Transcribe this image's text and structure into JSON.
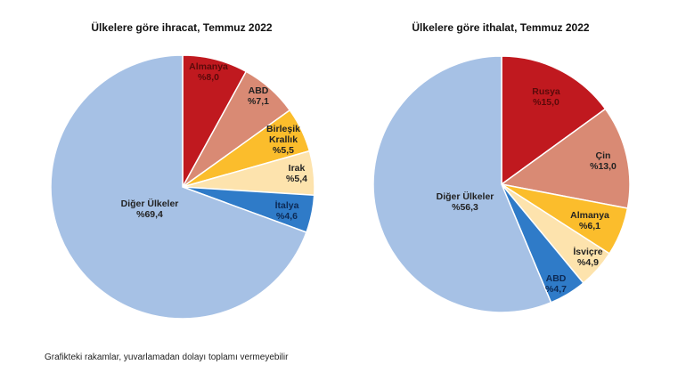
{
  "chart_data": [
    {
      "type": "pie",
      "title": "Ülkelere göre ihracat, Temmuz 2022",
      "slices": [
        {
          "label": [
            "Almanya"
          ],
          "value": 8.0,
          "text": "%8,0",
          "color": "#c0191f",
          "text_color": "#5a0a0a"
        },
        {
          "label": [
            "ABD"
          ],
          "value": 7.1,
          "text": "%7,1",
          "color": "#d98a74",
          "text_color": "#222222"
        },
        {
          "label": [
            "Birleşik",
            "Krallık"
          ],
          "value": 5.5,
          "text": "%5,5",
          "color": "#fbbd2c",
          "text_color": "#222222"
        },
        {
          "label": [
            "Irak"
          ],
          "value": 5.4,
          "text": "%5,4",
          "color": "#fde3ad",
          "text_color": "#222222"
        },
        {
          "label": [
            "İtalya"
          ],
          "value": 4.6,
          "text": "%4,6",
          "color": "#2f7bc8",
          "text_color": "#0d2a55"
        },
        {
          "label": [
            "Diğer Ülkeler"
          ],
          "value": 69.4,
          "text": "%69,4",
          "color": "#a6c1e5",
          "text_color": "#222222"
        }
      ]
    },
    {
      "type": "pie",
      "title": "Ülkelere göre ithalat, Temmuz 2022",
      "slices": [
        {
          "label": [
            "Rusya"
          ],
          "value": 15.0,
          "text": "%15,0",
          "color": "#c0191f",
          "text_color": "#5a0a0a"
        },
        {
          "label": [
            "Çin"
          ],
          "value": 13.0,
          "text": "%13,0",
          "color": "#d98a74",
          "text_color": "#222222"
        },
        {
          "label": [
            "Almanya"
          ],
          "value": 6.1,
          "text": "%6,1",
          "color": "#fbbd2c",
          "text_color": "#222222"
        },
        {
          "label": [
            "İsviçre"
          ],
          "value": 4.9,
          "text": "%4,9",
          "color": "#fde3ad",
          "text_color": "#222222"
        },
        {
          "label": [
            "ABD"
          ],
          "value": 4.7,
          "text": "%4,7",
          "color": "#2f7bc8",
          "text_color": "#0d2a55"
        },
        {
          "label": [
            "Diğer Ülkeler"
          ],
          "value": 56.3,
          "text": "%56,3",
          "color": "#a6c1e5",
          "text_color": "#222222"
        }
      ]
    }
  ],
  "footnote": "Grafikteki rakamlar, yuvarlamadan dolayı toplamı vermeyebilir"
}
